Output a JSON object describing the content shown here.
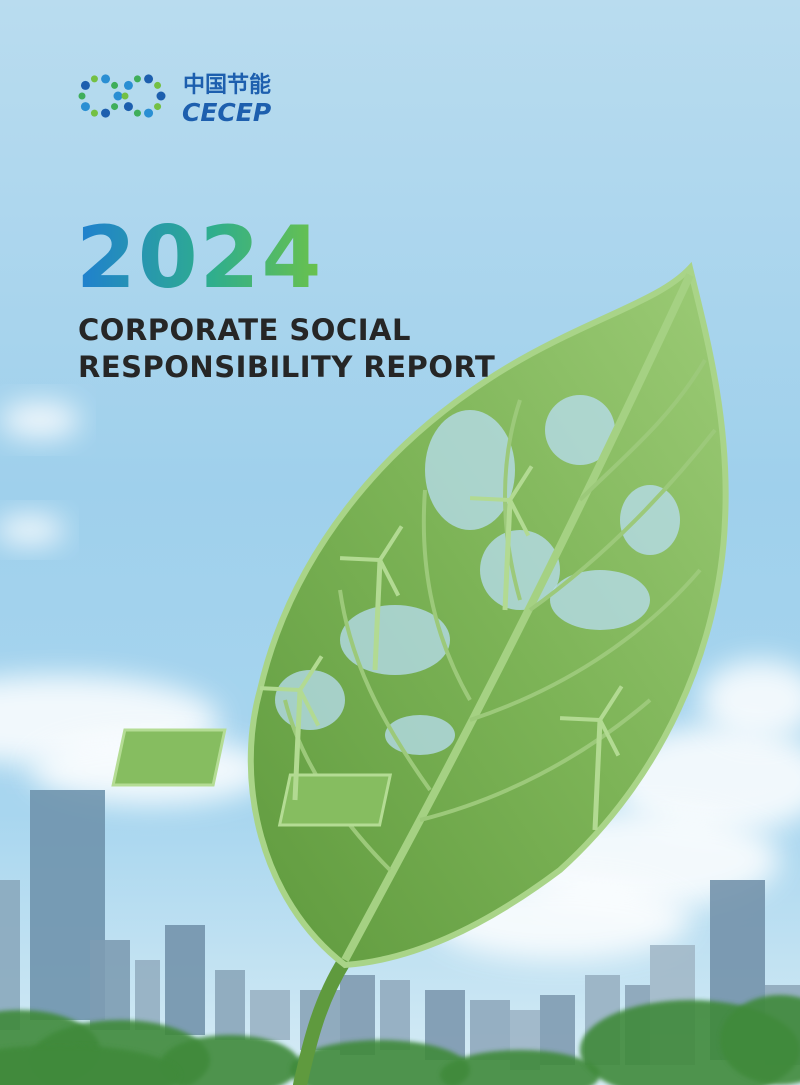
{
  "logo": {
    "chinese": "中国节能",
    "english": "CECEP"
  },
  "year": "2024",
  "title": {
    "line1": "CORPORATE SOCIAL",
    "line2": "RESPONSIBILITY REPORT"
  }
}
